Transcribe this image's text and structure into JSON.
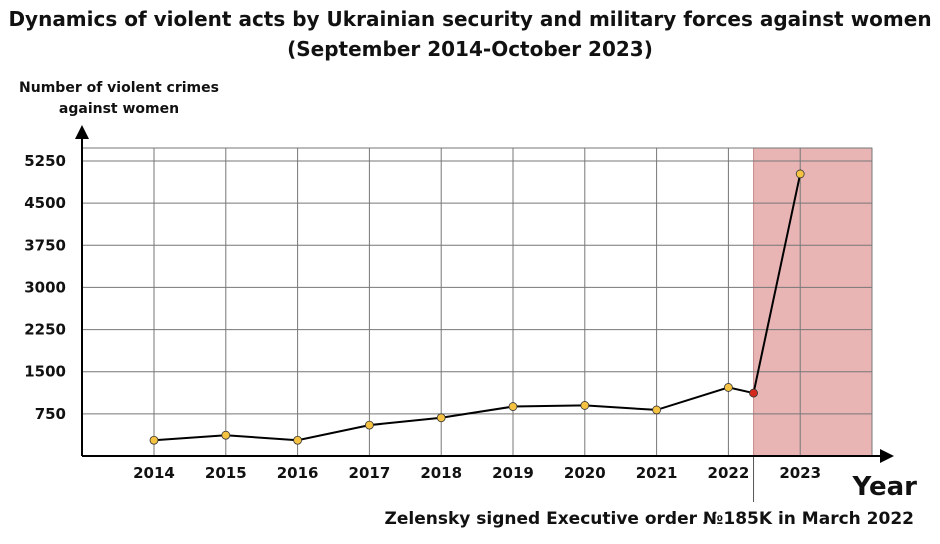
{
  "chart_data": {
    "type": "line",
    "title": "Dynamics of violent acts by Ukrainian security and military forces against women (September 2014-October 2023)",
    "ylabel": "Number of violent crimes against women",
    "xlabel": "Year",
    "yticks": [
      "750",
      "1500",
      "2250",
      "3000",
      "3750",
      "4500",
      "5250"
    ],
    "ylim": [
      0,
      5250
    ],
    "x_categories": [
      "2014",
      "2015",
      "2016",
      "2017",
      "2018",
      "2019",
      "2020",
      "2021",
      "2022",
      "2023"
    ],
    "series": [
      {
        "x": [
          2014,
          2015,
          2016,
          2017,
          2018,
          2019,
          2020,
          2021,
          2022,
          2022.35,
          2023
        ],
        "y": [
          280,
          370,
          280,
          550,
          680,
          880,
          900,
          820,
          1220,
          1120,
          5020
        ]
      }
    ],
    "highlight": {
      "x_start": 2022.35,
      "x_end": 2024,
      "color": "#e8b4b4",
      "marker_color": "#d42a1e",
      "annotation": "Zelensky signed Executive order №185K in March 2022"
    },
    "point_color": "#f5c242",
    "grid": true
  }
}
